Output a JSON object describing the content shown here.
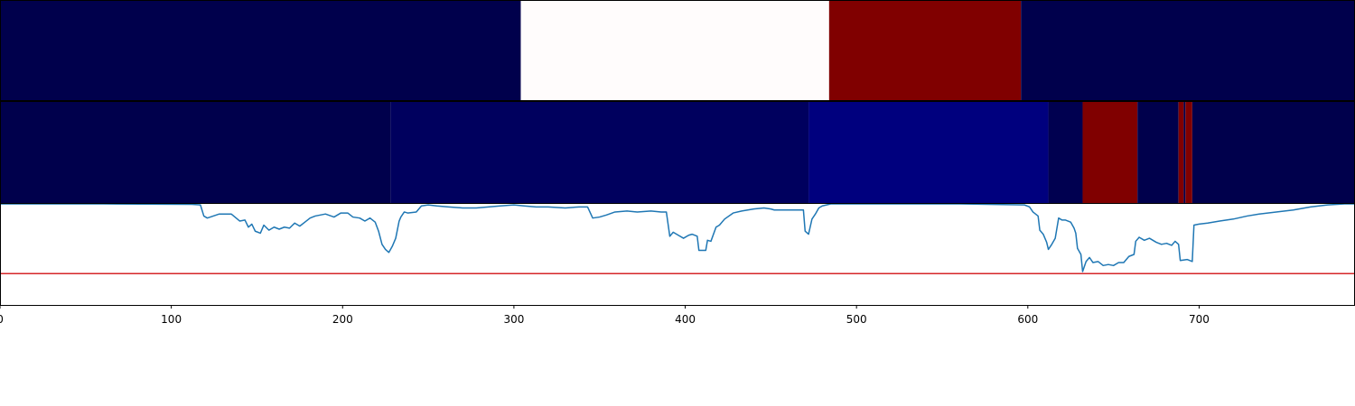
{
  "chart_data": [
    {
      "type": "heatmap",
      "panel": "top",
      "colormap": "seismic",
      "segments": [
        {
          "start": 0,
          "end": 304,
          "color": "#00004c"
        },
        {
          "start": 304,
          "end": 484,
          "color": "#fffcfc"
        },
        {
          "start": 484,
          "end": 596,
          "color": "#800000"
        },
        {
          "start": 596,
          "end": 791,
          "color": "#00004c"
        }
      ]
    },
    {
      "type": "heatmap",
      "panel": "middle",
      "colormap": "seismic",
      "segments": [
        {
          "start": 0,
          "end": 228,
          "color": "#00004c"
        },
        {
          "start": 228,
          "end": 472,
          "color": "#00005e"
        },
        {
          "start": 472,
          "end": 612,
          "color": "#00007e"
        },
        {
          "start": 612,
          "end": 632,
          "color": "#000050"
        },
        {
          "start": 632,
          "end": 664,
          "color": "#800000"
        },
        {
          "start": 664,
          "end": 688,
          "color": "#00004c"
        },
        {
          "start": 688,
          "end": 691,
          "color": "#800000"
        },
        {
          "start": 691,
          "end": 692,
          "color": "#00004c"
        },
        {
          "start": 692,
          "end": 696,
          "color": "#800000"
        },
        {
          "start": 696,
          "end": 791,
          "color": "#00004c"
        }
      ]
    },
    {
      "type": "line",
      "panel": "bottom",
      "xlim": [
        0,
        791
      ],
      "ylim": [
        0,
        1
      ],
      "xticks": [
        0,
        100,
        200,
        300,
        400,
        500,
        600,
        700
      ],
      "xtick_labels": [
        "0",
        "100",
        "200",
        "300",
        "400",
        "500",
        "600",
        "700"
      ],
      "threshold": 0.31,
      "series": [
        {
          "color": "#1f77b4",
          "points": [
            [
              0,
              1.0
            ],
            [
              60,
              1.0
            ],
            [
              112,
              0.995
            ],
            [
              117,
              0.99
            ],
            [
              119,
              0.88
            ],
            [
              121,
              0.86
            ],
            [
              128,
              0.9
            ],
            [
              135,
              0.9
            ],
            [
              140,
              0.83
            ],
            [
              143,
              0.84
            ],
            [
              145,
              0.77
            ],
            [
              147,
              0.8
            ],
            [
              149,
              0.73
            ],
            [
              152,
              0.71
            ],
            [
              154,
              0.79
            ],
            [
              157,
              0.74
            ],
            [
              160,
              0.77
            ],
            [
              163,
              0.75
            ],
            [
              166,
              0.77
            ],
            [
              169,
              0.76
            ],
            [
              172,
              0.81
            ],
            [
              175,
              0.78
            ],
            [
              178,
              0.82
            ],
            [
              181,
              0.86
            ],
            [
              184,
              0.88
            ],
            [
              190,
              0.9
            ],
            [
              195,
              0.87
            ],
            [
              199,
              0.91
            ],
            [
              203,
              0.91
            ],
            [
              206,
              0.87
            ],
            [
              210,
              0.86
            ],
            [
              213,
              0.83
            ],
            [
              216,
              0.86
            ],
            [
              219,
              0.82
            ],
            [
              221,
              0.73
            ],
            [
              223,
              0.6
            ],
            [
              225,
              0.55
            ],
            [
              227,
              0.52
            ],
            [
              229,
              0.58
            ],
            [
              231,
              0.66
            ],
            [
              233,
              0.83
            ],
            [
              234,
              0.87
            ],
            [
              236,
              0.92
            ],
            [
              238,
              0.91
            ],
            [
              243,
              0.92
            ],
            [
              246,
              0.98
            ],
            [
              250,
              0.99
            ],
            [
              255,
              0.98
            ],
            [
              262,
              0.97
            ],
            [
              270,
              0.96
            ],
            [
              278,
              0.96
            ],
            [
              285,
              0.97
            ],
            [
              292,
              0.98
            ],
            [
              300,
              0.99
            ],
            [
              306,
              0.98
            ],
            [
              313,
              0.97
            ],
            [
              320,
              0.97
            ],
            [
              330,
              0.96
            ],
            [
              338,
              0.97
            ],
            [
              343,
              0.97
            ],
            [
              346,
              0.86
            ],
            [
              350,
              0.87
            ],
            [
              354,
              0.89
            ],
            [
              359,
              0.92
            ],
            [
              366,
              0.93
            ],
            [
              372,
              0.92
            ],
            [
              380,
              0.93
            ],
            [
              386,
              0.92
            ],
            [
              389,
              0.92
            ],
            [
              391,
              0.68
            ],
            [
              393,
              0.72
            ],
            [
              396,
              0.69
            ],
            [
              399,
              0.66
            ],
            [
              402,
              0.69
            ],
            [
              404,
              0.7
            ],
            [
              407,
              0.68
            ],
            [
              408,
              0.54
            ],
            [
              412,
              0.54
            ],
            [
              413,
              0.64
            ],
            [
              415,
              0.63
            ],
            [
              418,
              0.77
            ],
            [
              420,
              0.79
            ],
            [
              423,
              0.85
            ],
            [
              428,
              0.91
            ],
            [
              433,
              0.93
            ],
            [
              440,
              0.95
            ],
            [
              446,
              0.96
            ],
            [
              450,
              0.95
            ],
            [
              452,
              0.94
            ],
            [
              469,
              0.94
            ],
            [
              470,
              0.73
            ],
            [
              472,
              0.7
            ],
            [
              474,
              0.85
            ],
            [
              476,
              0.9
            ],
            [
              478,
              0.96
            ],
            [
              480,
              0.98
            ],
            [
              485,
              1.0
            ],
            [
              520,
              1.0
            ],
            [
              560,
              1.0
            ],
            [
              598,
              0.99
            ],
            [
              601,
              0.97
            ],
            [
              603,
              0.92
            ],
            [
              606,
              0.88
            ],
            [
              607,
              0.74
            ],
            [
              609,
              0.7
            ],
            [
              611,
              0.62
            ],
            [
              612,
              0.55
            ],
            [
              614,
              0.6
            ],
            [
              616,
              0.66
            ],
            [
              618,
              0.86
            ],
            [
              620,
              0.84
            ],
            [
              622,
              0.84
            ],
            [
              625,
              0.82
            ],
            [
              627,
              0.76
            ],
            [
              628,
              0.71
            ],
            [
              629,
              0.56
            ],
            [
              631,
              0.5
            ],
            [
              632,
              0.33
            ],
            [
              634,
              0.43
            ],
            [
              636,
              0.47
            ],
            [
              638,
              0.42
            ],
            [
              641,
              0.43
            ],
            [
              644,
              0.39
            ],
            [
              647,
              0.4
            ],
            [
              650,
              0.39
            ],
            [
              653,
              0.42
            ],
            [
              656,
              0.42
            ],
            [
              659,
              0.48
            ],
            [
              662,
              0.5
            ],
            [
              663,
              0.63
            ],
            [
              665,
              0.67
            ],
            [
              668,
              0.64
            ],
            [
              671,
              0.66
            ],
            [
              675,
              0.62
            ],
            [
              678,
              0.6
            ],
            [
              681,
              0.61
            ],
            [
              684,
              0.59
            ],
            [
              686,
              0.63
            ],
            [
              688,
              0.6
            ],
            [
              689,
              0.44
            ],
            [
              693,
              0.45
            ],
            [
              696,
              0.43
            ],
            [
              697,
              0.79
            ],
            [
              700,
              0.8
            ],
            [
              705,
              0.81
            ],
            [
              712,
              0.83
            ],
            [
              720,
              0.85
            ],
            [
              728,
              0.88
            ],
            [
              735,
              0.9
            ],
            [
              745,
              0.92
            ],
            [
              755,
              0.94
            ],
            [
              765,
              0.97
            ],
            [
              775,
              0.99
            ],
            [
              785,
              1.0
            ],
            [
              791,
              1.0
            ]
          ]
        }
      ]
    }
  ],
  "colors": {
    "threshold_line": "#d62728",
    "axis": "#000000"
  }
}
